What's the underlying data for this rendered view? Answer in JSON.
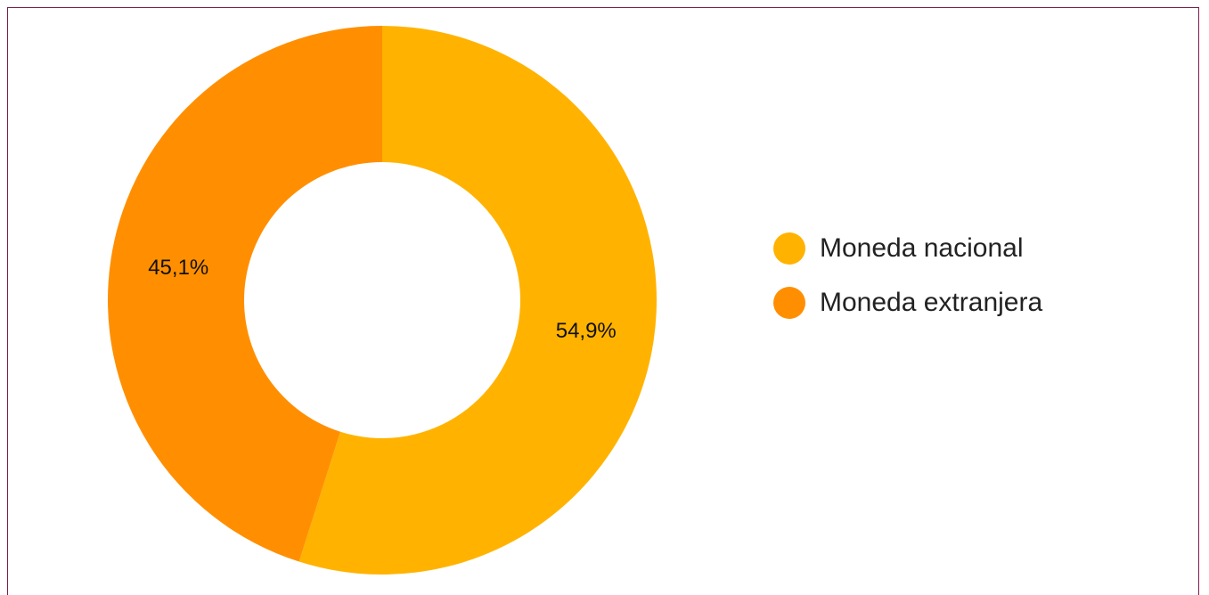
{
  "chart_data": {
    "type": "donut",
    "categories": [
      "Moneda nacional",
      "Moneda extranjera"
    ],
    "values": [
      54.9,
      45.1
    ],
    "value_labels": [
      "54,9%",
      "45,1%"
    ],
    "colors": [
      "#ffb300",
      "#ff8f00"
    ],
    "legend": "right"
  }
}
